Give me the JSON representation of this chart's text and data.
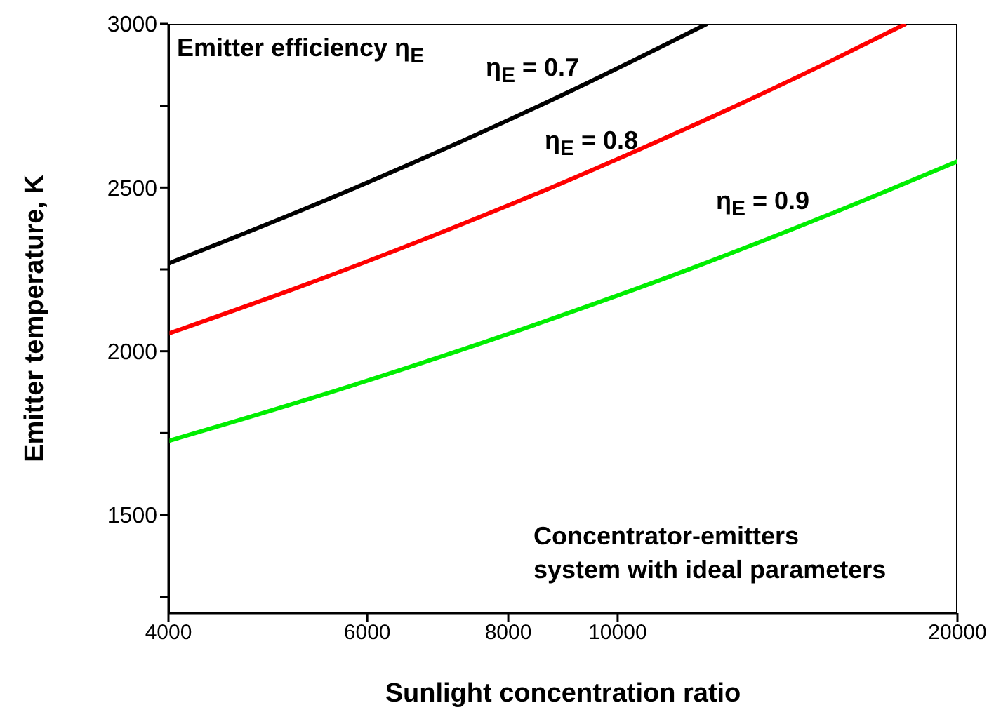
{
  "chart_data": {
    "type": "line",
    "xlabel": "Sunlight concentration ratio",
    "ylabel": "Emitter temperature, K",
    "log": "x",
    "xlim": [
      4000,
      20000
    ],
    "xticks": [
      4000,
      6000,
      8000,
      10000,
      20000
    ],
    "ylim": [
      1200,
      3000
    ],
    "yticks": [
      {
        "value": 1250,
        "label": null
      },
      1500,
      {
        "value": 1750,
        "label": null
      },
      2000,
      {
        "value": 2250,
        "label": null
      },
      2500,
      {
        "value": 2750,
        "label": null
      },
      3000
    ],
    "marker": "none",
    "line_style": "solid",
    "series": [
      {
        "color": "#000000",
        "x": [
          4000,
          5200,
          6900,
          9100,
          12000
        ],
        "values": [
          2268,
          2425,
          2606,
          2796,
          3000
        ]
      },
      {
        "color": "#ff0000",
        "x": [
          4000,
          5200,
          6900,
          9100,
          11500,
          15200,
          18000
        ],
        "values": [
          2054,
          2194,
          2356,
          2526,
          2680,
          2875,
          3000
        ]
      },
      {
        "color": "#00ee00",
        "x": [
          4000,
          5200,
          6900,
          9100,
          11500,
          15200,
          20000
        ],
        "values": [
          1726,
          1843,
          1978,
          2120,
          2247,
          2410,
          2580
        ]
      }
    ],
    "annotations": [
      "Emitter efficiency η$_{E}$",
      "η$_{E}$ = 0.7",
      "η$_{E}$ = 0.8",
      "η$_{E}$ = 0.9",
      "Concentrator-emitters\nsystem with ideal parameters"
    ]
  }
}
